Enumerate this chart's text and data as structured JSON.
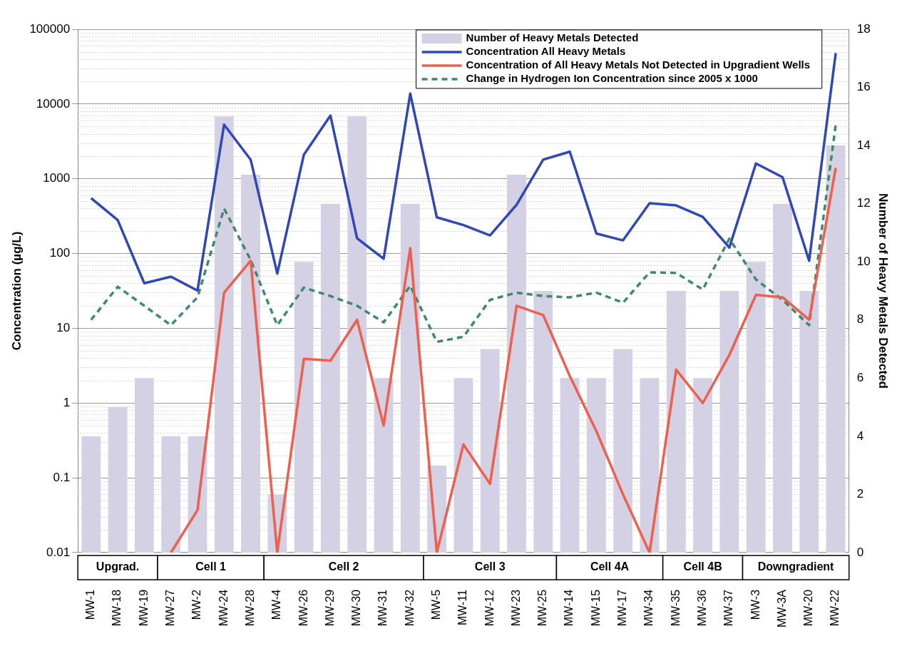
{
  "chart_data": {
    "type": "bar",
    "categories": [
      "MW-1",
      "MW-18",
      "MW-19",
      "MW-27",
      "MW-2",
      "MW-24",
      "MW-28",
      "MW-4",
      "MW-26",
      "MW-29",
      "MW-30",
      "MW-31",
      "MW-32",
      "MW-5",
      "MW-11",
      "MW-12",
      "MW-23",
      "MW-25",
      "MW-14",
      "MW-15",
      "MW-17",
      "MW-34",
      "MW-35",
      "MW-36",
      "MW-37",
      "MW-3",
      "MW-3A",
      "MW-20",
      "MW-22"
    ],
    "series": [
      {
        "name": "Number of Heavy Metals Detected",
        "axis": "y2",
        "color": "#d5d1e4",
        "values": [
          4,
          5,
          6,
          4,
          4,
          15,
          13,
          2,
          10,
          12,
          15,
          6,
          12,
          3,
          6,
          7,
          13,
          9,
          6,
          6,
          7,
          6,
          9,
          6,
          9,
          10,
          12,
          9,
          14
        ]
      },
      {
        "name": "Concentration All Heavy Metals",
        "type": "line",
        "color": "#2f48b5",
        "values": [
          550,
          280,
          40,
          49,
          32,
          5300,
          1800,
          54,
          2100,
          7000,
          160,
          85,
          13800,
          305,
          240,
          175,
          450,
          1800,
          2300,
          185,
          150,
          470,
          440,
          310,
          120,
          1600,
          1050,
          80,
          48000
        ]
      },
      {
        "name": "Concentration of All Heavy Metals Not Detected in Upgradient Wells",
        "type": "line",
        "color": "#ee5f4e",
        "values": [
          null,
          null,
          null,
          0.01,
          0.037,
          30,
          80,
          0.01,
          3.9,
          3.7,
          13,
          0.5,
          118,
          0.01,
          0.28,
          0.083,
          20,
          15,
          2.3,
          0.42,
          0.06,
          0.01,
          2.8,
          1.0,
          4.4,
          28,
          26,
          13,
          1400
        ]
      },
      {
        "name": "Change in Hydrogen Ion Concentration since 2005 x 1000",
        "type": "line",
        "line_style": "dashed",
        "color": "#3d8a6c",
        "values": [
          13,
          36,
          20,
          11,
          26,
          400,
          82,
          11,
          35,
          27,
          20,
          12,
          37,
          6.6,
          7.7,
          24,
          30,
          27,
          26,
          30,
          22,
          56,
          55,
          33,
          158,
          45,
          24,
          11,
          5300
        ]
      }
    ],
    "ylabel": "Concentration (µg/L)",
    "y2label": "Number of Heavy Metals Detected",
    "log": "y",
    "ylim": [
      0.01,
      100000
    ],
    "yticks": [
      0.01,
      0.1,
      1,
      10,
      100,
      1000,
      10000,
      100000
    ],
    "y2lim": [
      0,
      18
    ],
    "y2ticks": [
      0,
      2,
      4,
      6,
      8,
      10,
      12,
      14,
      16,
      18
    ],
    "grid": "y",
    "legend": "top right",
    "marker": "none",
    "annotations": [
      "Upgrad.",
      "Cell 1",
      "Cell 2",
      "Cell 3",
      "Cell 4A",
      "Cell 4B",
      "Downgradient"
    ]
  }
}
